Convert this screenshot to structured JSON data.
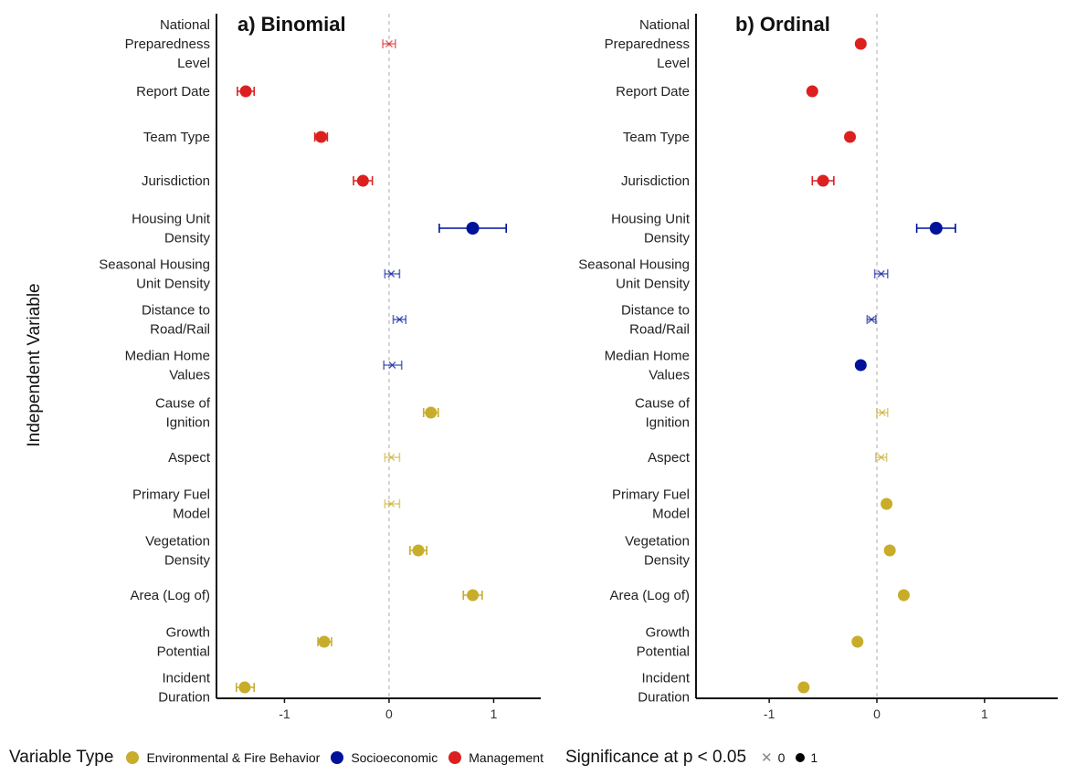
{
  "colors": {
    "environmental": "#c8ad2b",
    "socioeconomic": "#00129a",
    "management": "#dc2020"
  },
  "chart_data": [
    {
      "type": "scatter",
      "title": "a) Binomial",
      "ylabel": "Independent Variable",
      "xlim": [
        -1.65,
        1.45
      ],
      "xticks": [
        "-1",
        "0",
        "1"
      ],
      "variables": [
        {
          "label": "National Preparedness Level",
          "lines": [
            "National",
            "Preparedness",
            "Level"
          ],
          "group": "management",
          "sig": 0,
          "est": 0.0,
          "lo": -0.06,
          "hi": 0.06
        },
        {
          "label": "Report Date",
          "lines": [
            "Report Date"
          ],
          "group": "management",
          "sig": 1,
          "est": -1.37,
          "lo": -1.45,
          "hi": -1.29
        },
        {
          "label": "Team Type",
          "lines": [
            "Team Type"
          ],
          "group": "management",
          "sig": 1,
          "est": -0.65,
          "lo": -0.71,
          "hi": -0.59
        },
        {
          "label": "Jurisdiction",
          "lines": [
            "Jurisdiction"
          ],
          "group": "management",
          "sig": 1,
          "est": -0.25,
          "lo": -0.34,
          "hi": -0.16
        },
        {
          "label": "Housing Unit Density",
          "lines": [
            "Housing Unit",
            "Density"
          ],
          "group": "socioeconomic",
          "sig": 1,
          "est": 0.8,
          "lo": 0.48,
          "hi": 1.12
        },
        {
          "label": "Seasonal Housing Unit Density",
          "lines": [
            "Seasonal Housing",
            "Unit Density"
          ],
          "group": "socioeconomic",
          "sig": 0,
          "est": 0.02,
          "lo": -0.04,
          "hi": 0.1
        },
        {
          "label": "Distance to Road/Rail",
          "lines": [
            "Distance to",
            "Road/Rail"
          ],
          "group": "socioeconomic",
          "sig": 0,
          "est": 0.1,
          "lo": 0.04,
          "hi": 0.16
        },
        {
          "label": "Median Home Values",
          "lines": [
            "Median Home",
            "Values"
          ],
          "group": "socioeconomic",
          "sig": 0,
          "est": 0.03,
          "lo": -0.05,
          "hi": 0.12
        },
        {
          "label": "Cause of Ignition",
          "lines": [
            "Cause of",
            "Ignition"
          ],
          "group": "environmental",
          "sig": 1,
          "est": 0.4,
          "lo": 0.33,
          "hi": 0.47
        },
        {
          "label": "Aspect",
          "lines": [
            "Aspect"
          ],
          "group": "environmental",
          "sig": 0,
          "est": 0.02,
          "lo": -0.04,
          "hi": 0.1
        },
        {
          "label": "Primary Fuel Model",
          "lines": [
            "Primary Fuel",
            "Model"
          ],
          "group": "environmental",
          "sig": 0,
          "est": 0.02,
          "lo": -0.04,
          "hi": 0.1
        },
        {
          "label": "Vegetation Density",
          "lines": [
            "Vegetation",
            "Density"
          ],
          "group": "environmental",
          "sig": 1,
          "est": 0.28,
          "lo": 0.2,
          "hi": 0.36
        },
        {
          "label": "Area (Log of)",
          "lines": [
            "Area (Log of)"
          ],
          "group": "environmental",
          "sig": 1,
          "est": 0.8,
          "lo": 0.71,
          "hi": 0.89
        },
        {
          "label": "Growth Potential",
          "lines": [
            "Growth",
            "Potential"
          ],
          "group": "environmental",
          "sig": 1,
          "est": -0.62,
          "lo": -0.68,
          "hi": -0.55
        },
        {
          "label": "Incident Duration",
          "lines": [
            "Incident",
            "Duration"
          ],
          "group": "environmental",
          "sig": 1,
          "est": -1.38,
          "lo": -1.46,
          "hi": -1.29
        }
      ]
    },
    {
      "type": "scatter",
      "title": "b) Ordinal",
      "xlim": [
        -1.68,
        1.68
      ],
      "xticks": [
        "-1",
        "0",
        "1"
      ],
      "variables": [
        {
          "label": "National Preparedness Level",
          "lines": [
            "National",
            "Preparedness",
            "Level"
          ],
          "group": "management",
          "sig": 1,
          "est": -0.15,
          "lo": -0.15,
          "hi": -0.15
        },
        {
          "label": "Report Date",
          "lines": [
            "Report Date"
          ],
          "group": "management",
          "sig": 1,
          "est": -0.6,
          "lo": -0.6,
          "hi": -0.6
        },
        {
          "label": "Team Type",
          "lines": [
            "Team Type"
          ],
          "group": "management",
          "sig": 1,
          "est": -0.25,
          "lo": -0.25,
          "hi": -0.25
        },
        {
          "label": "Jurisdiction",
          "lines": [
            "Jurisdiction"
          ],
          "group": "management",
          "sig": 1,
          "est": -0.5,
          "lo": -0.6,
          "hi": -0.4
        },
        {
          "label": "Housing Unit Density",
          "lines": [
            "Housing Unit",
            "Density"
          ],
          "group": "socioeconomic",
          "sig": 1,
          "est": 0.55,
          "lo": 0.37,
          "hi": 0.73
        },
        {
          "label": "Seasonal Housing Unit Density",
          "lines": [
            "Seasonal Housing",
            "Unit Density"
          ],
          "group": "socioeconomic",
          "sig": 0,
          "est": 0.04,
          "lo": -0.02,
          "hi": 0.1
        },
        {
          "label": "Distance to Road/Rail",
          "lines": [
            "Distance to",
            "Road/Rail"
          ],
          "group": "socioeconomic",
          "sig": 0,
          "est": -0.05,
          "lo": -0.09,
          "hi": -0.01
        },
        {
          "label": "Median Home Values",
          "lines": [
            "Median Home",
            "Values"
          ],
          "group": "socioeconomic",
          "sig": 1,
          "est": -0.15,
          "lo": -0.15,
          "hi": -0.15
        },
        {
          "label": "Cause of Ignition",
          "lines": [
            "Cause of",
            "Ignition"
          ],
          "group": "environmental",
          "sig": 0,
          "est": 0.05,
          "lo": 0.0,
          "hi": 0.1
        },
        {
          "label": "Aspect",
          "lines": [
            "Aspect"
          ],
          "group": "environmental",
          "sig": 0,
          "est": 0.04,
          "lo": -0.01,
          "hi": 0.09
        },
        {
          "label": "Primary Fuel Model",
          "lines": [
            "Primary Fuel",
            "Model"
          ],
          "group": "environmental",
          "sig": 1,
          "est": 0.09,
          "lo": 0.09,
          "hi": 0.09
        },
        {
          "label": "Vegetation Density",
          "lines": [
            "Vegetation",
            "Density"
          ],
          "group": "environmental",
          "sig": 1,
          "est": 0.12,
          "lo": 0.12,
          "hi": 0.12
        },
        {
          "label": "Area (Log of)",
          "lines": [
            "Area (Log of)"
          ],
          "group": "environmental",
          "sig": 1,
          "est": 0.25,
          "lo": 0.25,
          "hi": 0.25
        },
        {
          "label": "Growth Potential",
          "lines": [
            "Growth",
            "Potential"
          ],
          "group": "environmental",
          "sig": 1,
          "est": -0.18,
          "lo": -0.18,
          "hi": -0.18
        },
        {
          "label": "Incident Duration",
          "lines": [
            "Incident",
            "Duration"
          ],
          "group": "environmental",
          "sig": 1,
          "est": -0.68,
          "lo": -0.68,
          "hi": -0.68
        }
      ]
    }
  ],
  "legend": {
    "title": "Variable Type",
    "items": [
      {
        "label": "Environmental & Fire Behavior",
        "group": "environmental"
      },
      {
        "label": "Socioeconomic",
        "group": "socioeconomic"
      },
      {
        "label": "Management",
        "group": "management"
      }
    ],
    "significance_title": "Significance at p < 0.05",
    "sig_0_label": "0",
    "sig_1_label": "1"
  }
}
